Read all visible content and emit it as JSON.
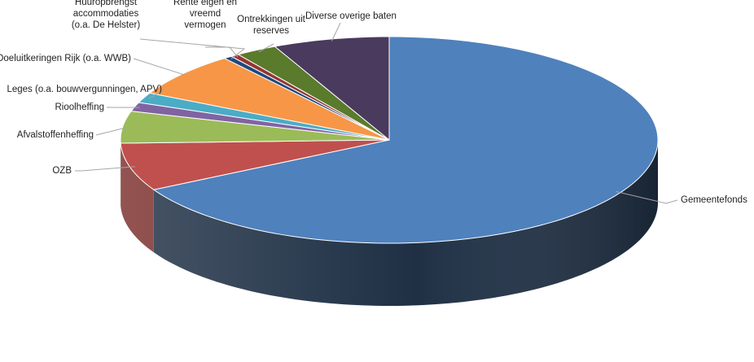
{
  "chart_data": {
    "type": "pie",
    "style": "3d",
    "start": "top",
    "direction": "clockwise",
    "slices": [
      {
        "label": "Gemeentefonds",
        "value": 67.0,
        "color": "#4f81bd",
        "side": "#1f3045",
        "label_lines": [
          "Gemeentefonds"
        ]
      },
      {
        "label": "OZB",
        "value": 7.5,
        "color": "#c0504d",
        "side": "#7a2e2c",
        "label_lines": [
          "OZB"
        ]
      },
      {
        "label": "Afvalstoffenheffing",
        "value": 5.0,
        "color": "#9bbb59",
        "side": "#5d7333",
        "label_lines": [
          "Afvalstoffenheffing"
        ]
      },
      {
        "label": "Rioolheffing",
        "value": 1.4,
        "color": "#8064a2",
        "side": "#4b3b60",
        "label_lines": [
          "Rioolheffing"
        ]
      },
      {
        "label": "Leges (o.a. bouwvergunningen, APV)",
        "value": 1.6,
        "color": "#4bacc6",
        "side": "#2a6675",
        "label_lines": [
          "Leges (o.a. bouwvergunningen, APV)"
        ]
      },
      {
        "label": "Doeluitkeringen Rijk (o.a. WWB)",
        "value": 7.0,
        "color": "#f79646",
        "side": "#935426",
        "label_lines": [
          "Doeluitkeringen Rijk (o.a. WWB)"
        ]
      },
      {
        "label": "Huuropbrengst accommodaties (o.a. De Helster)",
        "value": 0.5,
        "color": "#1f497d",
        "side": "#11294a",
        "label_lines": [
          "Huuropbrengst",
          "accommodaties",
          "(o.a. De Helster)"
        ]
      },
      {
        "label": "Rente eigen en vreemd vermogen",
        "value": 0.5,
        "color": "#943634",
        "side": "#5a1f1e",
        "label_lines": [
          "Rente eigen en",
          "vreemd",
          "vermogen"
        ]
      },
      {
        "label": "Ontrekkingen uit reserves",
        "value": 2.5,
        "color": "#5a7a2c",
        "side": "#344819",
        "label_lines": [
          "Ontrekkingen uit",
          "reserves"
        ]
      },
      {
        "label": "Diverse overige baten",
        "value": 7.0,
        "color": "#4a3a5e",
        "side": "#2a2036",
        "label_lines": [
          "Diverse overige baten"
        ]
      }
    ]
  }
}
